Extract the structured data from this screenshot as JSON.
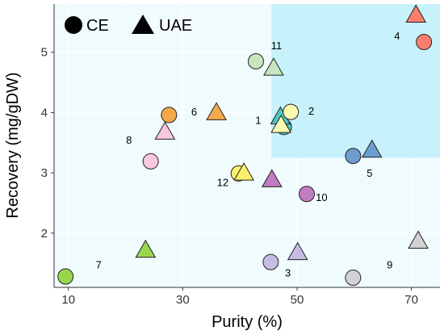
{
  "chart_data": {
    "type": "scatter",
    "title": "",
    "xlabel": "Purity (%)",
    "ylabel": "Recovery (mg/gDW)",
    "xlim": [
      7.5,
      75
    ],
    "ylim": [
      1.1,
      5.8
    ],
    "xticks": [
      10,
      30,
      50,
      70
    ],
    "yticks": [
      2,
      3,
      4,
      5
    ],
    "grid": true,
    "legend_position": "top-left",
    "plot_background": "#f0fbfe",
    "highlight_region": {
      "x": [
        45.5,
        75
      ],
      "y": [
        3.25,
        5.8
      ],
      "color": "#c8f2fb"
    },
    "series": [
      {
        "name": "CE",
        "marker": "circle"
      },
      {
        "name": "UAE",
        "marker": "triangle"
      }
    ],
    "points": [
      {
        "id": "1",
        "series": "CE",
        "x": 47.7,
        "y": 3.76,
        "color": "#4ec9c1"
      },
      {
        "id": "1",
        "series": "UAE",
        "x": 47.1,
        "y": 3.93,
        "color": "#4ec9c1"
      },
      {
        "id": "2",
        "series": "CE",
        "x": 48.9,
        "y": 4.01,
        "color": "#fafab0"
      },
      {
        "id": "2",
        "series": "UAE",
        "x": 47.2,
        "y": 3.79,
        "color": "#fafab0"
      },
      {
        "id": "3",
        "series": "CE",
        "x": 45.4,
        "y": 1.52,
        "color": "#c7bce4"
      },
      {
        "id": "3",
        "series": "UAE",
        "x": 50.1,
        "y": 1.68,
        "color": "#c7bce4"
      },
      {
        "id": "4",
        "series": "CE",
        "x": 72.2,
        "y": 5.17,
        "color": "#f97e6c"
      },
      {
        "id": "4",
        "series": "UAE",
        "x": 70.8,
        "y": 5.62,
        "color": "#f97e6c"
      },
      {
        "id": "5",
        "series": "CE",
        "x": 59.8,
        "y": 3.28,
        "color": "#6d9dcc"
      },
      {
        "id": "5",
        "series": "UAE",
        "x": 63.1,
        "y": 3.38,
        "color": "#6d9dcc"
      },
      {
        "id": "6",
        "series": "CE",
        "x": 27.6,
        "y": 3.96,
        "color": "#f6a94c"
      },
      {
        "id": "6",
        "series": "UAE",
        "x": 35.9,
        "y": 4.0,
        "color": "#f6a94c"
      },
      {
        "id": "7",
        "series": "CE",
        "x": 9.5,
        "y": 1.28,
        "color": "#98d64c"
      },
      {
        "id": "7",
        "series": "UAE",
        "x": 23.5,
        "y": 1.72,
        "color": "#98d64c"
      },
      {
        "id": "8",
        "series": "CE",
        "x": 24.4,
        "y": 3.19,
        "color": "#f7c8de"
      },
      {
        "id": "8",
        "series": "UAE",
        "x": 26.9,
        "y": 3.68,
        "color": "#f7c8de"
      },
      {
        "id": "9",
        "series": "CE",
        "x": 59.8,
        "y": 1.26,
        "color": "#d2d2d2"
      },
      {
        "id": "9",
        "series": "UAE",
        "x": 71.2,
        "y": 1.87,
        "color": "#d2d2d2"
      },
      {
        "id": "10",
        "series": "CE",
        "x": 51.7,
        "y": 2.65,
        "color": "#c17dc2"
      },
      {
        "id": "10",
        "series": "UAE",
        "x": 45.6,
        "y": 2.89,
        "color": "#c17dc2"
      },
      {
        "id": "11",
        "series": "CE",
        "x": 42.8,
        "y": 4.85,
        "color": "#c7e6c0"
      },
      {
        "id": "11",
        "series": "UAE",
        "x": 45.9,
        "y": 4.74,
        "color": "#c7e6c0"
      },
      {
        "id": "12",
        "series": "CE",
        "x": 39.8,
        "y": 2.99,
        "color": "#fdf06a"
      },
      {
        "id": "12",
        "series": "UAE",
        "x": 40.7,
        "y": 3.0,
        "color": "#fdf06a"
      }
    ],
    "labels": [
      {
        "text": "1",
        "x": 43.2,
        "y": 3.88
      },
      {
        "text": "2",
        "x": 52.5,
        "y": 4.03
      },
      {
        "text": "3",
        "x": 48.4,
        "y": 1.35
      },
      {
        "text": "4",
        "x": 67.5,
        "y": 5.28
      },
      {
        "text": "5",
        "x": 62.7,
        "y": 3.0
      },
      {
        "text": "6",
        "x": 32.0,
        "y": 4.02
      },
      {
        "text": "7",
        "x": 15.3,
        "y": 1.48
      },
      {
        "text": "8",
        "x": 20.6,
        "y": 3.55
      },
      {
        "text": "9",
        "x": 66.2,
        "y": 1.48
      },
      {
        "text": "10",
        "x": 54.3,
        "y": 2.6
      },
      {
        "text": "11",
        "x": 46.4,
        "y": 5.12
      },
      {
        "text": "12",
        "x": 37.0,
        "y": 2.85
      }
    ]
  }
}
